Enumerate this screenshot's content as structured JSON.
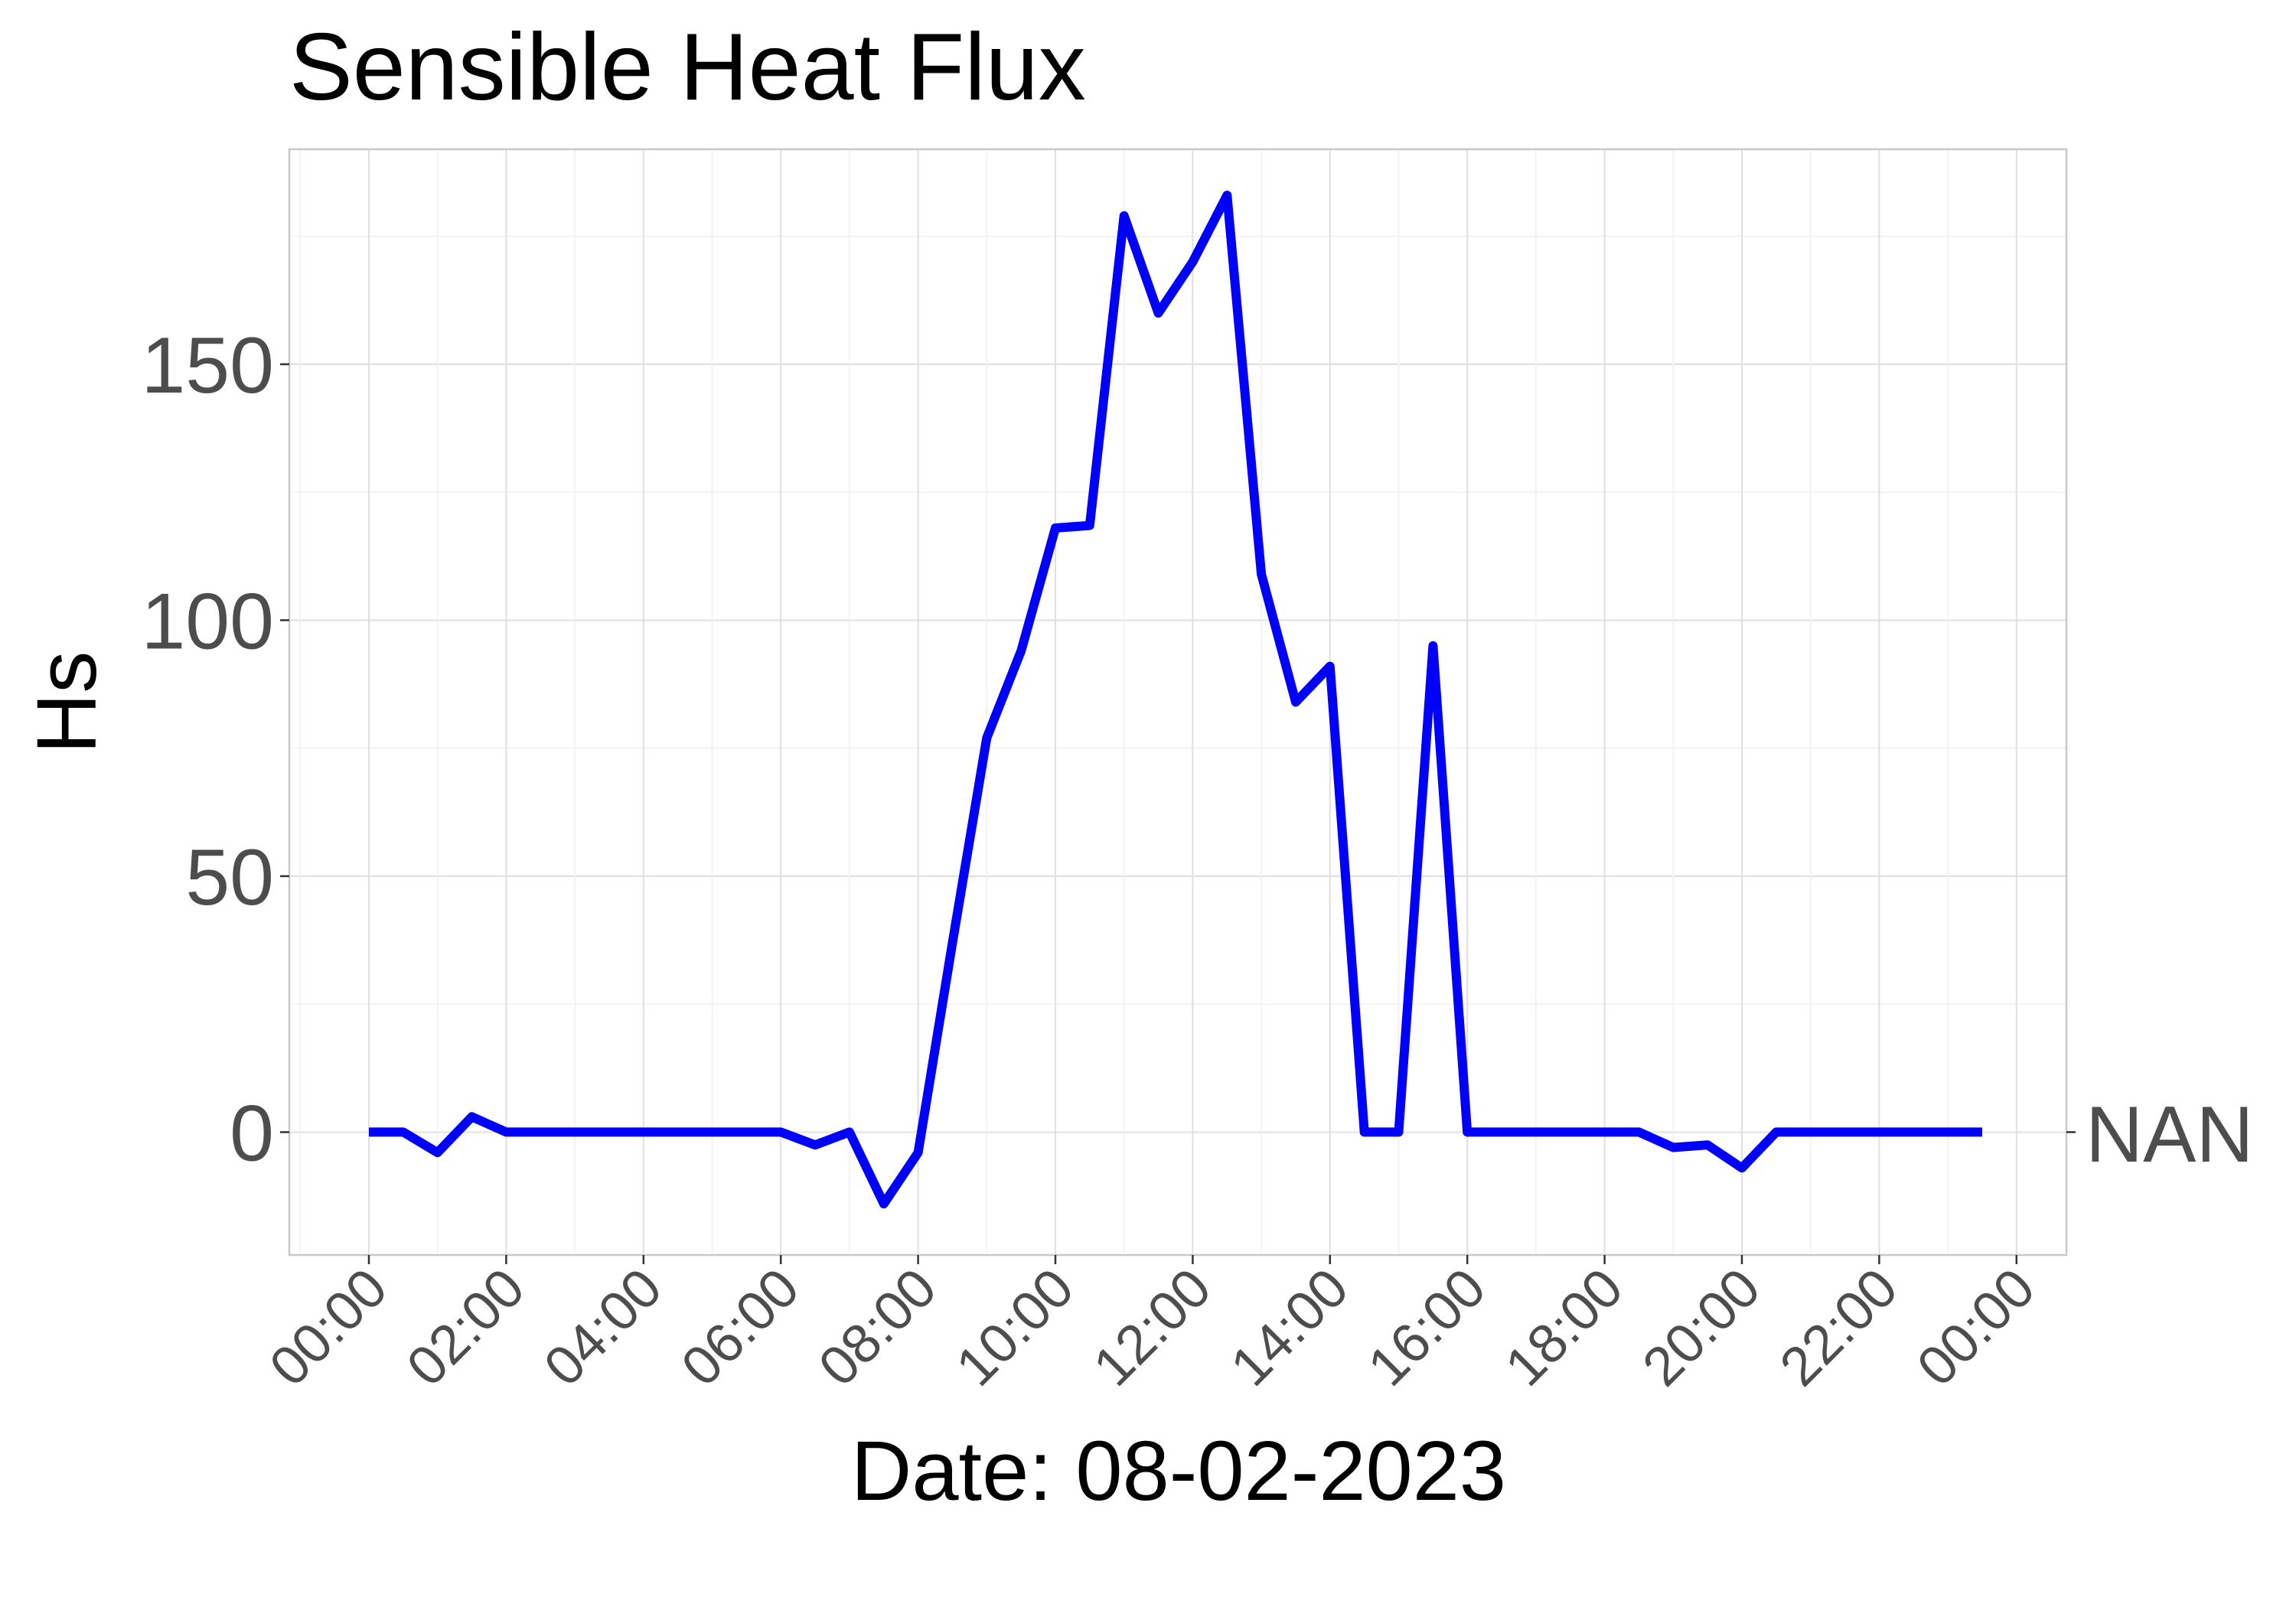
{
  "chart_data": {
    "type": "line",
    "title": "Sensible Heat Flux",
    "xlabel": "Date: 08-02-2023",
    "ylabel": "Hs",
    "secondary_y_label": "NAN",
    "x_tick_labels": [
      "00:00",
      "02:00",
      "04:00",
      "06:00",
      "08:00",
      "10:00",
      "12:00",
      "14:00",
      "16:00",
      "18:00",
      "20:00",
      "22:00",
      "00:00"
    ],
    "y_ticks": [
      0,
      50,
      100,
      150
    ],
    "ylim": [
      -24,
      192
    ],
    "grid": true,
    "legend": "none",
    "line_color": "#0000ff",
    "series": [
      {
        "x": [
          "00:00",
          "00:30",
          "01:00",
          "01:30",
          "02:00",
          "02:30",
          "03:00",
          "03:30",
          "04:00",
          "04:30",
          "05:00",
          "05:30",
          "06:00",
          "06:30",
          "07:00",
          "07:30",
          "08:00",
          "08:30",
          "09:00",
          "09:30",
          "10:00",
          "10:30",
          "11:00",
          "11:30",
          "12:00",
          "12:30",
          "13:00",
          "13:30",
          "14:00",
          "14:30",
          "15:00",
          "15:30",
          "16:00",
          "16:30",
          "17:00",
          "17:30",
          "18:00",
          "18:30",
          "19:00",
          "19:30",
          "20:00",
          "20:30",
          "21:00",
          "21:30",
          "22:00",
          "22:30",
          "23:00",
          "23:30"
        ],
        "values": [
          0,
          0,
          -4,
          3,
          0,
          0,
          0,
          0,
          0,
          0,
          0,
          0,
          0,
          -2.5,
          0,
          -14,
          -4,
          37,
          77,
          94,
          118,
          118.5,
          179,
          160,
          170,
          183,
          109,
          84,
          91,
          0,
          0,
          95,
          0,
          0,
          0,
          0,
          0,
          0,
          -3,
          -2.5,
          -7,
          0,
          0,
          0,
          0,
          0,
          0,
          0
        ]
      }
    ]
  }
}
